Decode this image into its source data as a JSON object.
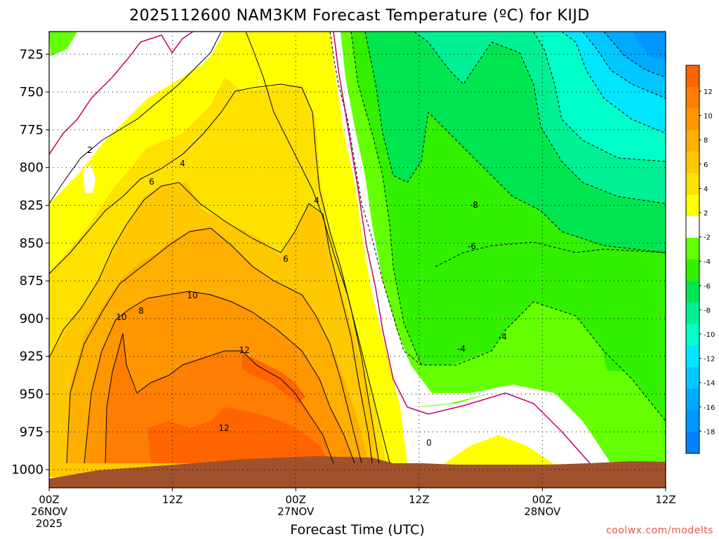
{
  "title": "2025112600 NAM3KM Forecast Temperature (ºC) for KIJD",
  "credit": "coolwx.com/modelts",
  "chart_data": {
    "type": "time-height contour",
    "title": "2025112600 NAM3KM Forecast Temperature (ºC) for KIJD",
    "xlabel": "Forecast Time (UTC)",
    "ylabel": "",
    "x_ticks": [
      "00Z",
      "12Z",
      "00Z",
      "12Z",
      "00Z",
      "12Z"
    ],
    "x_date_labels": [
      "26NOV",
      "27NOV",
      "28NOV"
    ],
    "x_year_label": "2025",
    "y_ticks": [
      "725",
      "750",
      "775",
      "800",
      "825",
      "850",
      "875",
      "900",
      "925",
      "950",
      "975",
      "1000"
    ],
    "y_range": [
      710,
      1012
    ],
    "units": "ºC",
    "colorbar": {
      "labels": [
        "12",
        "10",
        "8",
        "6",
        "4",
        "2",
        "-2",
        "-4",
        "-6",
        "-8",
        "-10",
        "-12",
        "-14",
        "-16",
        "-18"
      ],
      "colors": [
        "#ff6400",
        "#ff7d00",
        "#ff9600",
        "#ffaf00",
        "#ffc800",
        "#ffe100",
        "#ffff00",
        "#ffffff",
        "#64ff00",
        "#32f000",
        "#00e650",
        "#00f096",
        "#00ffc8",
        "#00e6ff",
        "#00c8ff",
        "#00aaff",
        "#0096ff",
        "#0082ff"
      ]
    },
    "contour_labels": [
      "2",
      "4",
      "6",
      "4",
      "6",
      "8",
      "10",
      "10",
      "12",
      "12",
      "0",
      "-8",
      "-6",
      "-4",
      "-4"
    ],
    "grid": true,
    "terrain_color": "#a0522d"
  }
}
